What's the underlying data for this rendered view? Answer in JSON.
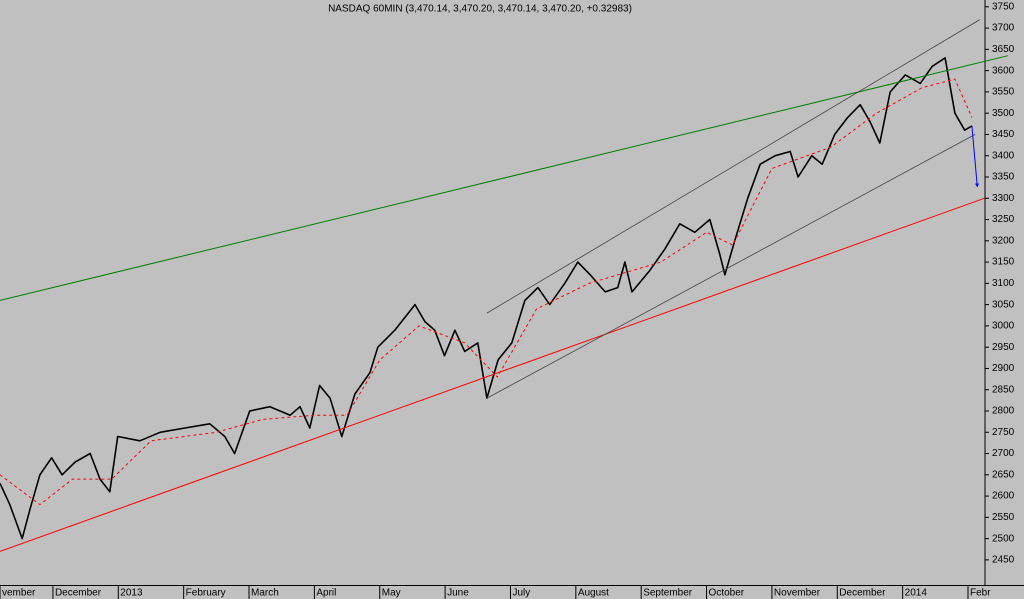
{
  "chart_data": {
    "type": "line",
    "title": "NASDAQ 60MIN (3,470.14, 3,470.20, 3,470.14, 3,470.20, +0.32983)",
    "xlim": [
      0.19,
      15.26
    ],
    "ylim": [
      2391,
      3766
    ],
    "xticks": [
      {
        "value": 0.19,
        "label": "vember"
      },
      {
        "value": 1,
        "label": "December"
      },
      {
        "value": 2,
        "label": "2013"
      },
      {
        "value": 3,
        "label": "February"
      },
      {
        "value": 4,
        "label": "March"
      },
      {
        "value": 5,
        "label": "April"
      },
      {
        "value": 6,
        "label": "May"
      },
      {
        "value": 7,
        "label": "June"
      },
      {
        "value": 8,
        "label": "July"
      },
      {
        "value": 9,
        "label": "August"
      },
      {
        "value": 10,
        "label": "September"
      },
      {
        "value": 11,
        "label": "October"
      },
      {
        "value": 12,
        "label": "November"
      },
      {
        "value": 13,
        "label": "December"
      },
      {
        "value": 14,
        "label": "2014"
      },
      {
        "value": 15,
        "label": "Febr"
      }
    ],
    "yticks": [
      2450,
      2500,
      2550,
      2600,
      2650,
      2700,
      2750,
      2800,
      2850,
      2900,
      2950,
      3000,
      3050,
      3100,
      3150,
      3200,
      3250,
      3300,
      3350,
      3400,
      3450,
      3500,
      3550,
      3600,
      3650,
      3700,
      3750
    ],
    "grid": false,
    "series": [
      {
        "color": "#000000",
        "style": "solid",
        "width": 1.6,
        "x": [
          0.19,
          0.34,
          0.53,
          0.65,
          0.8,
          0.98,
          1.14,
          1.34,
          1.57,
          1.72,
          1.87,
          1.99,
          2.33,
          2.64,
          3.02,
          3.4,
          3.63,
          3.78,
          4.01,
          4.32,
          4.63,
          4.78,
          4.93,
          5.08,
          5.24,
          5.42,
          5.62,
          5.85,
          5.97,
          6.23,
          6.54,
          6.69,
          6.84,
          6.99,
          7.15,
          7.3,
          7.5,
          7.64,
          7.81,
          8.02,
          8.22,
          8.42,
          8.6,
          8.83,
          9.03,
          9.22,
          9.45,
          9.64,
          9.75,
          9.86,
          10.13,
          10.36,
          10.59,
          10.82,
          11.05,
          11.2,
          11.28,
          11.43,
          11.63,
          11.82,
          12.05,
          12.28,
          12.4,
          12.61,
          12.77,
          12.96,
          13.16,
          13.35,
          13.5,
          13.65,
          13.81,
          14.04,
          14.27,
          14.45,
          14.65,
          14.8,
          14.95,
          15.06
        ],
        "values": [
          2630,
          2580,
          2500,
          2570,
          2650,
          2690,
          2650,
          2680,
          2700,
          2640,
          2610,
          2740,
          2730,
          2750,
          2760,
          2770,
          2740,
          2700,
          2800,
          2810,
          2790,
          2810,
          2760,
          2860,
          2830,
          2740,
          2840,
          2890,
          2950,
          2990,
          3050,
          3010,
          2990,
          2930,
          2990,
          2940,
          2960,
          2830,
          2920,
          2960,
          3060,
          3090,
          3050,
          3100,
          3150,
          3120,
          3080,
          3090,
          3150,
          3080,
          3130,
          3180,
          3240,
          3220,
          3250,
          3170,
          3120,
          3200,
          3300,
          3380,
          3400,
          3410,
          3350,
          3400,
          3380,
          3450,
          3490,
          3520,
          3480,
          3430,
          3550,
          3590,
          3570,
          3610,
          3630,
          3500,
          3460,
          3470
        ]
      },
      {
        "color": "#ff0000",
        "style": "dashed",
        "width": 1,
        "x": [
          0.19,
          0.8,
          1.3,
          1.9,
          2.5,
          3.5,
          4.2,
          5.0,
          5.5,
          6.0,
          6.6,
          7.3,
          7.8,
          8.4,
          9.2,
          10.3,
          11.0,
          11.4,
          12.0,
          12.9,
          13.6,
          14.3,
          14.8,
          15.06
        ],
        "values": [
          2650,
          2580,
          2640,
          2640,
          2730,
          2750,
          2780,
          2790,
          2790,
          2920,
          3000,
          2960,
          2880,
          3040,
          3100,
          3150,
          3220,
          3190,
          3370,
          3420,
          3500,
          3560,
          3580,
          3490
        ]
      },
      {
        "color": "#008000",
        "style": "solid",
        "width": 1,
        "x": [
          0.19,
          15.61
        ],
        "values": [
          3060,
          3635
        ]
      },
      {
        "color": "#ff0000",
        "style": "solid",
        "width": 1,
        "x": [
          0.19,
          15.25
        ],
        "values": [
          2470,
          3300
        ]
      },
      {
        "color": "#404040",
        "style": "solid",
        "width": 0.8,
        "x": [
          7.64,
          15.18
        ],
        "values": [
          3030,
          3720
        ]
      },
      {
        "color": "#404040",
        "style": "solid",
        "width": 0.8,
        "x": [
          7.64,
          15.11
        ],
        "values": [
          2830,
          3450
        ]
      },
      {
        "color": "#0000ff",
        "style": "arrow",
        "width": 1,
        "x": [
          15.06,
          15.14
        ],
        "values": [
          3470,
          3330
        ]
      }
    ]
  }
}
